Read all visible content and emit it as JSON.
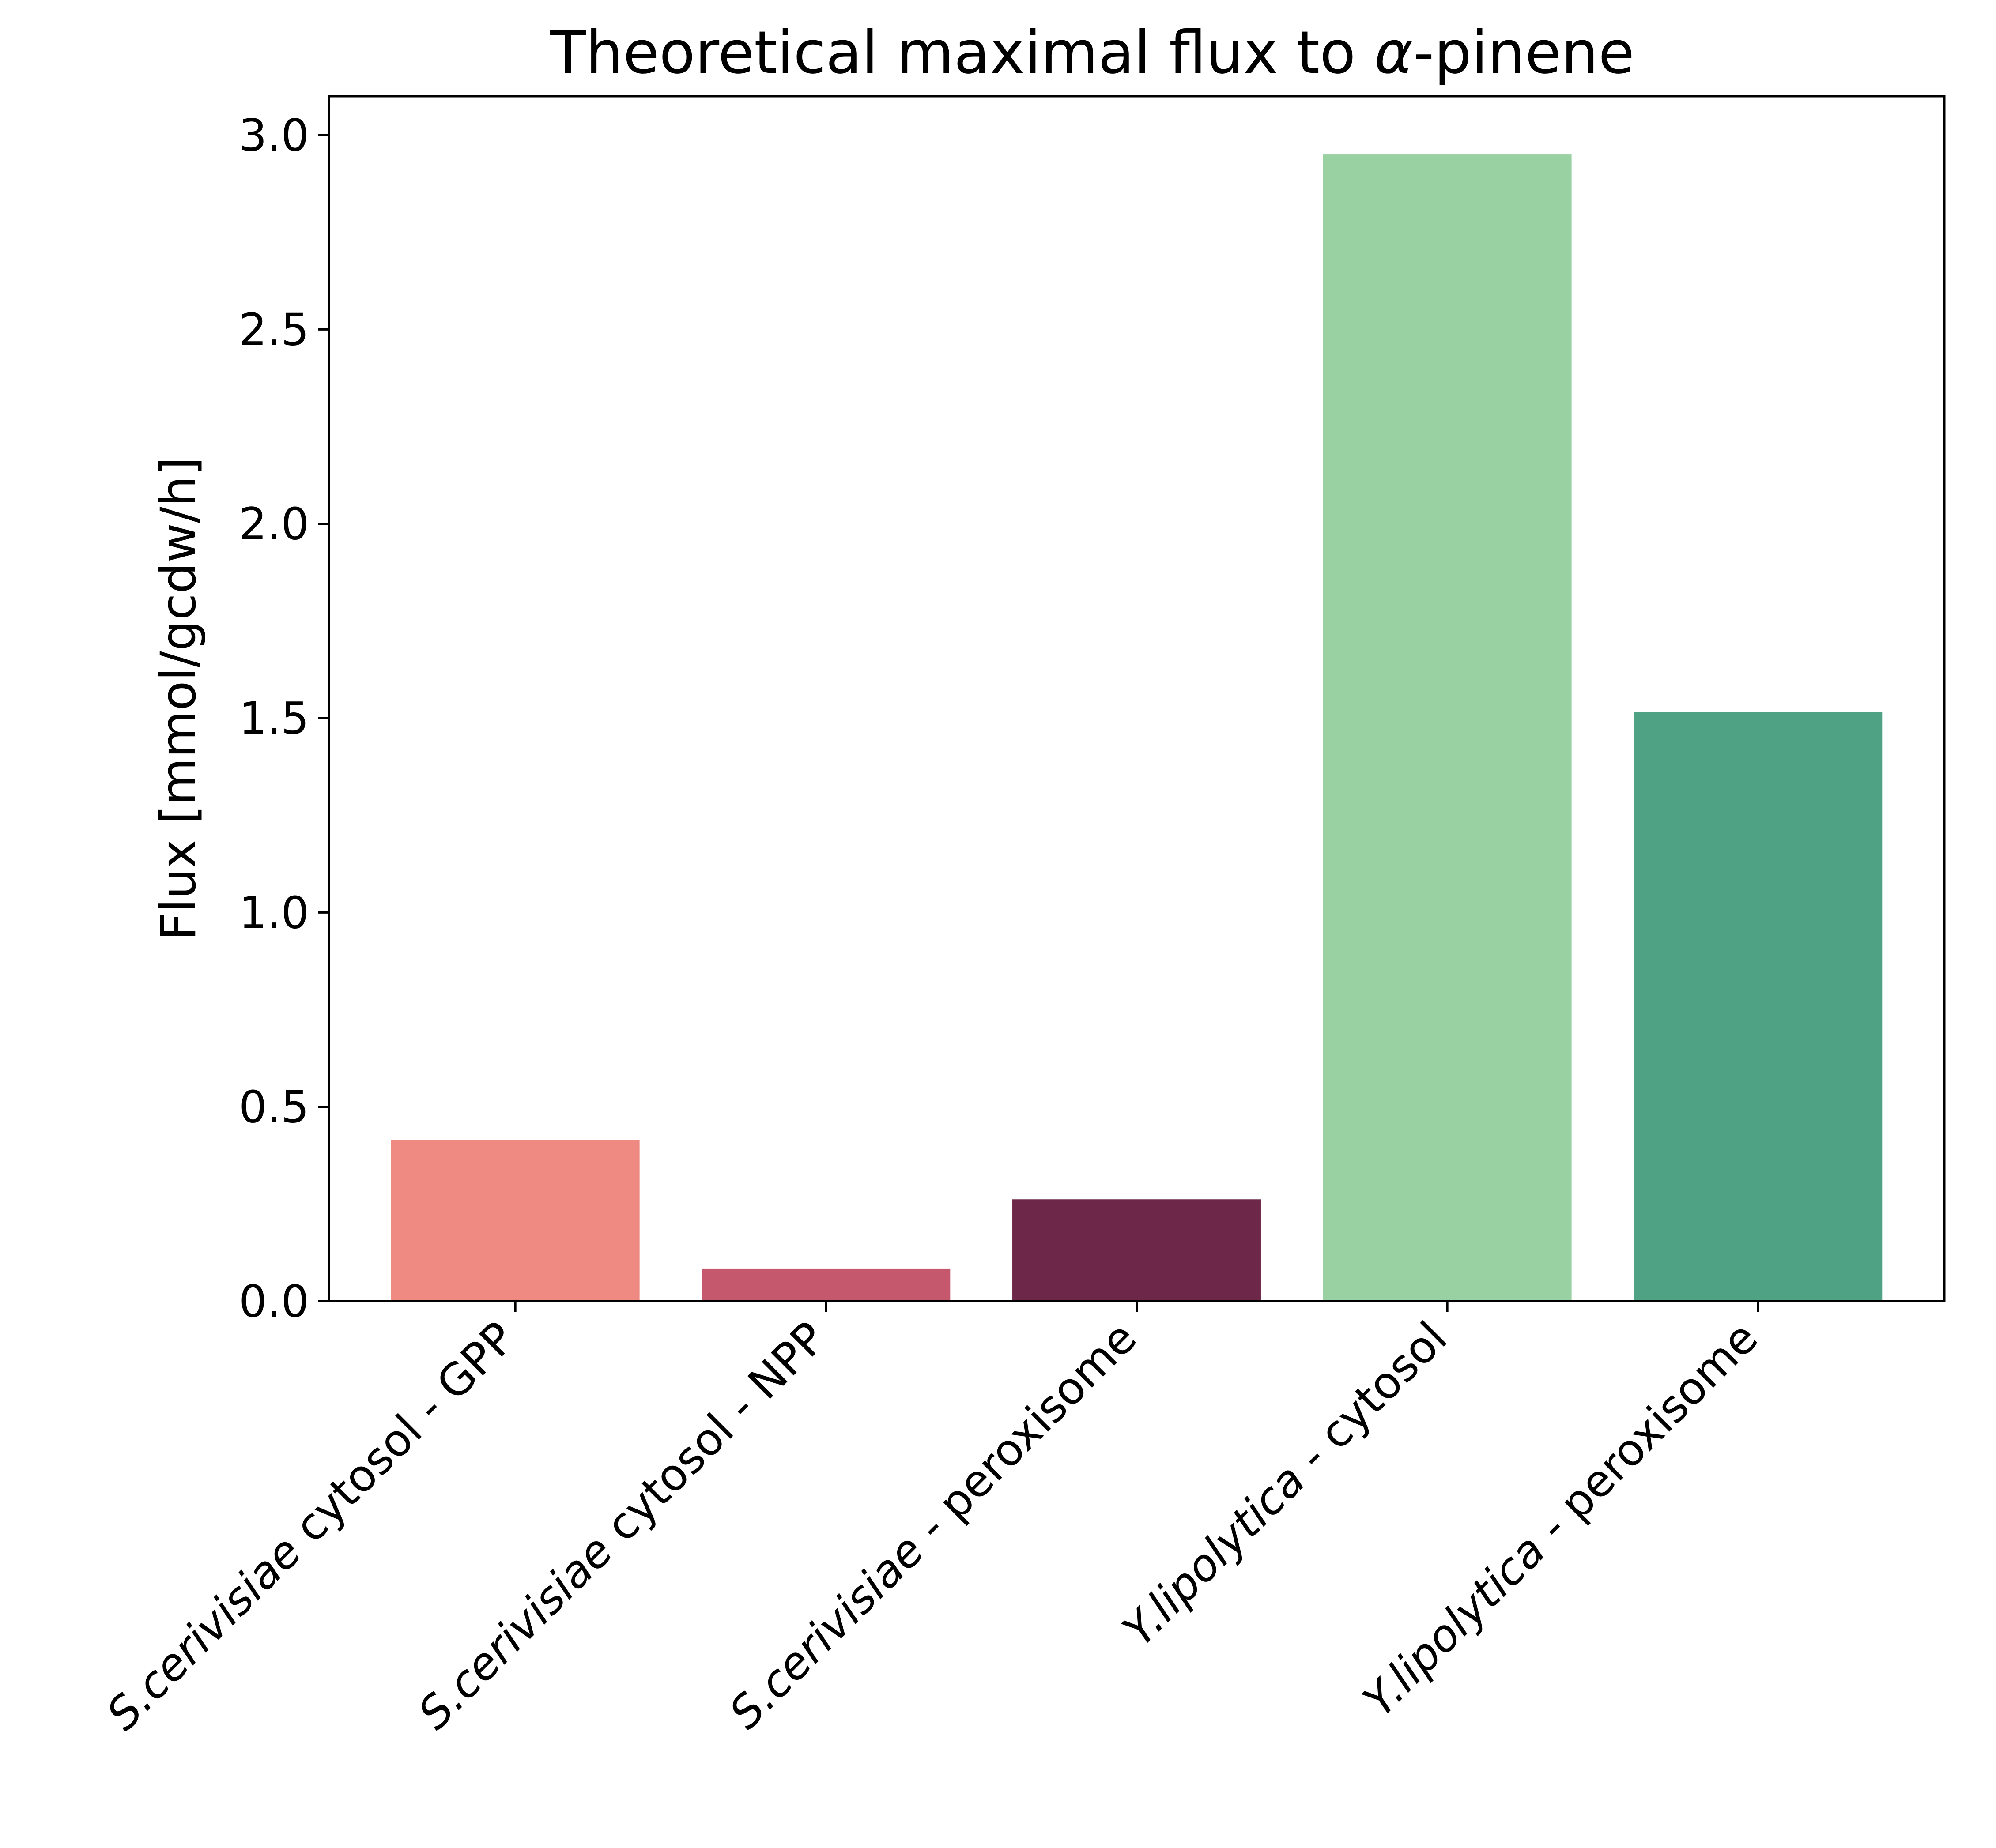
{
  "chart_data": {
    "type": "bar",
    "title_main": "Theoretical maximal flux to ",
    "title_greek": "α",
    "title_tail": "-pinene",
    "ylabel": "Flux [mmol/gcdw/h]",
    "xlabel": "",
    "ylim": [
      0,
      3.1
    ],
    "yticks": [
      "0.0",
      "0.5",
      "1.0",
      "1.5",
      "2.0",
      "2.5",
      "3.0"
    ],
    "grid": false,
    "categories": [
      {
        "italic": "S.cerivisiae",
        "rest": " cytosol - GPP"
      },
      {
        "italic": "S.cerivisiae",
        "rest": " cytosol - NPP"
      },
      {
        "italic": "S.cerivisiae",
        "rest": " - peroxisome"
      },
      {
        "italic": "Y.lipolytica",
        "rest": " - cytosol"
      },
      {
        "italic": "Y.lipolytica",
        "rest": " - peroxisome"
      }
    ],
    "values": [
      0.415,
      0.083,
      0.262,
      2.95,
      1.515
    ],
    "colors": [
      "#ee8a82",
      "#c5586c",
      "#6d2749",
      "#99d1a3",
      "#4fa283"
    ]
  }
}
